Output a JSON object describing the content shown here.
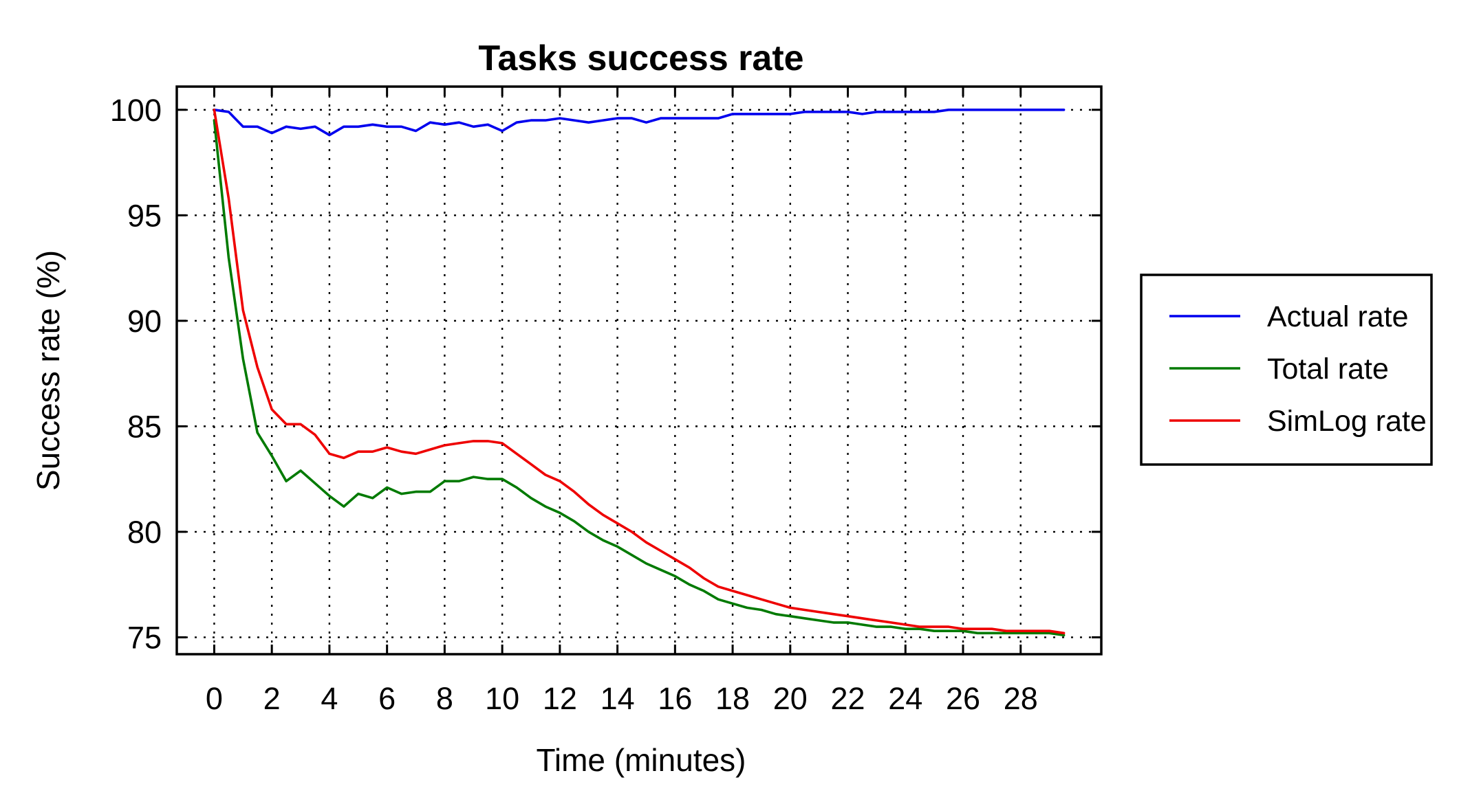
{
  "chart_data": {
    "type": "line",
    "title": "Tasks success rate",
    "xlabel": "Time (minutes)",
    "ylabel": "Success rate (%)",
    "xlim": [
      -1.3,
      30.8
    ],
    "ylim": [
      74.2,
      101.1
    ],
    "xticks": [
      0,
      2,
      4,
      6,
      8,
      10,
      12,
      14,
      16,
      18,
      20,
      22,
      24,
      26,
      28
    ],
    "yticks": [
      75,
      80,
      85,
      90,
      95,
      100
    ],
    "grid": true,
    "legend_position": "right",
    "x": [
      0,
      0.5,
      1,
      1.5,
      2,
      2.5,
      3,
      3.5,
      4,
      4.5,
      5,
      5.5,
      6,
      6.5,
      7,
      7.5,
      8,
      8.5,
      9,
      9.5,
      10,
      10.5,
      11,
      11.5,
      12,
      12.5,
      13,
      13.5,
      14,
      14.5,
      15,
      15.5,
      16,
      16.5,
      17,
      17.5,
      18,
      18.5,
      19,
      19.5,
      20,
      20.5,
      21,
      21.5,
      22,
      22.5,
      23,
      23.5,
      24,
      24.5,
      25,
      25.5,
      26,
      26.5,
      27,
      27.5,
      28,
      28.5,
      29,
      29.5
    ],
    "series": [
      {
        "name": "Actual rate",
        "color": "#0000ee",
        "values": [
          100,
          99.9,
          99.2,
          99.2,
          98.9,
          99.2,
          99.1,
          99.2,
          98.8,
          99.2,
          99.2,
          99.3,
          99.2,
          99.2,
          99.0,
          99.4,
          99.3,
          99.4,
          99.2,
          99.3,
          99.0,
          99.4,
          99.5,
          99.5,
          99.6,
          99.5,
          99.4,
          99.5,
          99.6,
          99.6,
          99.4,
          99.6,
          99.6,
          99.6,
          99.6,
          99.6,
          99.8,
          99.8,
          99.8,
          99.8,
          99.8,
          99.9,
          99.9,
          99.9,
          99.9,
          99.8,
          99.9,
          99.9,
          99.9,
          99.9,
          99.9,
          100,
          100,
          100,
          100,
          100,
          100,
          100,
          100,
          100
        ]
      },
      {
        "name": "Total rate",
        "color": "#007a00",
        "values": [
          99.5,
          93.0,
          88.2,
          84.7,
          83.6,
          82.4,
          82.9,
          82.3,
          81.7,
          81.2,
          81.8,
          81.6,
          82.1,
          81.8,
          81.9,
          81.9,
          82.4,
          82.4,
          82.6,
          82.5,
          82.5,
          82.1,
          81.6,
          81.2,
          80.9,
          80.5,
          80.0,
          79.6,
          79.3,
          78.9,
          78.5,
          78.2,
          77.9,
          77.5,
          77.2,
          76.8,
          76.6,
          76.4,
          76.3,
          76.1,
          76.0,
          75.9,
          75.8,
          75.7,
          75.7,
          75.6,
          75.5,
          75.5,
          75.4,
          75.4,
          75.3,
          75.3,
          75.3,
          75.2,
          75.2,
          75.2,
          75.2,
          75.2,
          75.2,
          75.1
        ]
      },
      {
        "name": "SimLog rate",
        "color": "#ee0000",
        "values": [
          100,
          95.8,
          90.5,
          87.8,
          85.8,
          85.1,
          85.1,
          84.6,
          83.7,
          83.5,
          83.8,
          83.8,
          84.0,
          83.8,
          83.7,
          83.9,
          84.1,
          84.2,
          84.3,
          84.3,
          84.2,
          83.7,
          83.2,
          82.7,
          82.4,
          81.9,
          81.3,
          80.8,
          80.4,
          80.0,
          79.5,
          79.1,
          78.7,
          78.3,
          77.8,
          77.4,
          77.2,
          77.0,
          76.8,
          76.6,
          76.4,
          76.3,
          76.2,
          76.1,
          76.0,
          75.9,
          75.8,
          75.7,
          75.6,
          75.5,
          75.5,
          75.5,
          75.4,
          75.4,
          75.4,
          75.3,
          75.3,
          75.3,
          75.3,
          75.2
        ]
      }
    ]
  }
}
